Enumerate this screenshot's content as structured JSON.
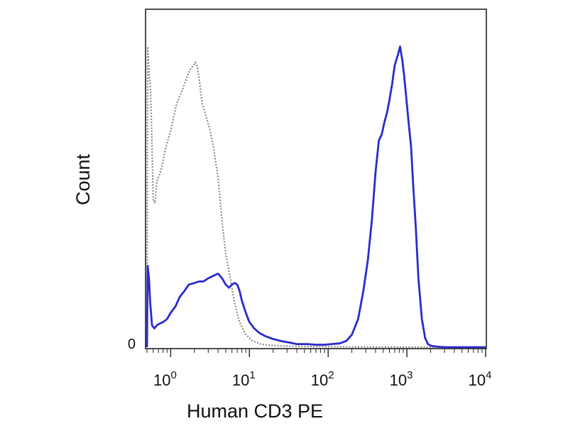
{
  "chart_data": {
    "type": "line",
    "xlabel": "Human CD3 PE",
    "ylabel": "Count",
    "x_scale": "log",
    "xlim": [
      0.5,
      10000
    ],
    "ylim": [
      0,
      100
    ],
    "x_ticks": [
      {
        "value": 1,
        "base": "10",
        "exp": "0"
      },
      {
        "value": 10,
        "base": "10",
        "exp": "1"
      },
      {
        "value": 100,
        "base": "10",
        "exp": "2"
      },
      {
        "value": 1000,
        "base": "10",
        "exp": "3"
      },
      {
        "value": 10000,
        "base": "10",
        "exp": "4"
      }
    ],
    "y_ticks": [
      {
        "value": 0,
        "label": "0"
      }
    ],
    "grid": false,
    "legend": "none",
    "series": [
      {
        "color": "#8a8a8a",
        "style": "dotted",
        "x": [
          0.5,
          0.51,
          0.52,
          0.53,
          0.55,
          0.57,
          0.6,
          0.63,
          0.67,
          0.72,
          0.78,
          0.85,
          0.92,
          1.0,
          1.1,
          1.2,
          1.35,
          1.5,
          1.65,
          1.8,
          1.95,
          2.05,
          2.15,
          2.3,
          2.5,
          2.8,
          3.1,
          3.5,
          4.0,
          4.5,
          5.0,
          5.7,
          6.5,
          7.5,
          9.0,
          11.0,
          14.0,
          18.0,
          25.0,
          40.0,
          80.0,
          200.0,
          1000.0,
          10000.0
        ],
        "y": [
          0,
          96,
          93,
          88,
          84,
          72,
          47,
          46,
          53,
          55,
          58,
          63,
          66,
          69,
          74,
          78,
          81,
          84,
          87,
          89,
          90,
          91,
          90,
          86,
          78,
          74,
          70,
          64,
          54,
          40,
          30,
          22,
          14,
          8,
          4,
          2,
          1,
          0.6,
          0.4,
          0.3,
          0.2,
          0.1,
          0,
          0
        ]
      },
      {
        "color": "#2b2bcc",
        "style": "solid",
        "x": [
          0.5,
          0.51,
          0.53,
          0.55,
          0.58,
          0.62,
          0.67,
          0.72,
          0.8,
          0.9,
          1.0,
          1.15,
          1.3,
          1.5,
          1.7,
          2.0,
          2.3,
          2.6,
          3.0,
          3.3,
          3.6,
          4.0,
          4.5,
          5.0,
          5.5,
          6.0,
          6.5,
          7.0,
          7.5,
          8.0,
          9.0,
          10.0,
          11.5,
          13.5,
          16.0,
          20.0,
          25.0,
          32.0,
          40.0,
          55.0,
          70.0,
          90.0,
          110.0,
          140.0,
          170.0,
          200.0,
          240.0,
          280.0,
          320.0,
          360.0,
          400.0,
          440.0,
          480.0,
          520.0,
          560.0,
          600.0,
          650.0,
          700.0,
          760.0,
          820.0,
          870.0,
          920.0,
          980.0,
          1050.0,
          1130.0,
          1200.0,
          1300.0,
          1400.0,
          1550.0,
          1700.0,
          1850.0,
          2000.0,
          2200.0,
          2400.0,
          2700.0,
          3200.0,
          4500.0,
          10000.0
        ],
        "y": [
          0,
          26,
          22,
          14,
          7,
          6,
          7,
          7.5,
          8,
          9,
          11,
          13,
          16,
          18,
          20,
          20.5,
          21,
          21,
          22,
          22.5,
          23,
          23.5,
          22,
          20,
          19,
          20,
          20.5,
          20,
          18,
          15,
          11,
          8,
          6,
          4.5,
          3.5,
          2.6,
          2,
          1.5,
          1,
          1,
          0.8,
          0.8,
          1,
          1.2,
          2,
          4,
          9,
          18,
          28,
          41,
          56,
          66,
          68,
          72,
          75,
          79,
          84,
          90,
          93,
          96,
          92,
          87,
          80,
          72,
          64,
          52,
          38,
          22,
          9,
          3,
          1,
          0.5,
          0.3,
          0.2,
          0.1,
          0,
          0,
          0
        ]
      }
    ]
  }
}
